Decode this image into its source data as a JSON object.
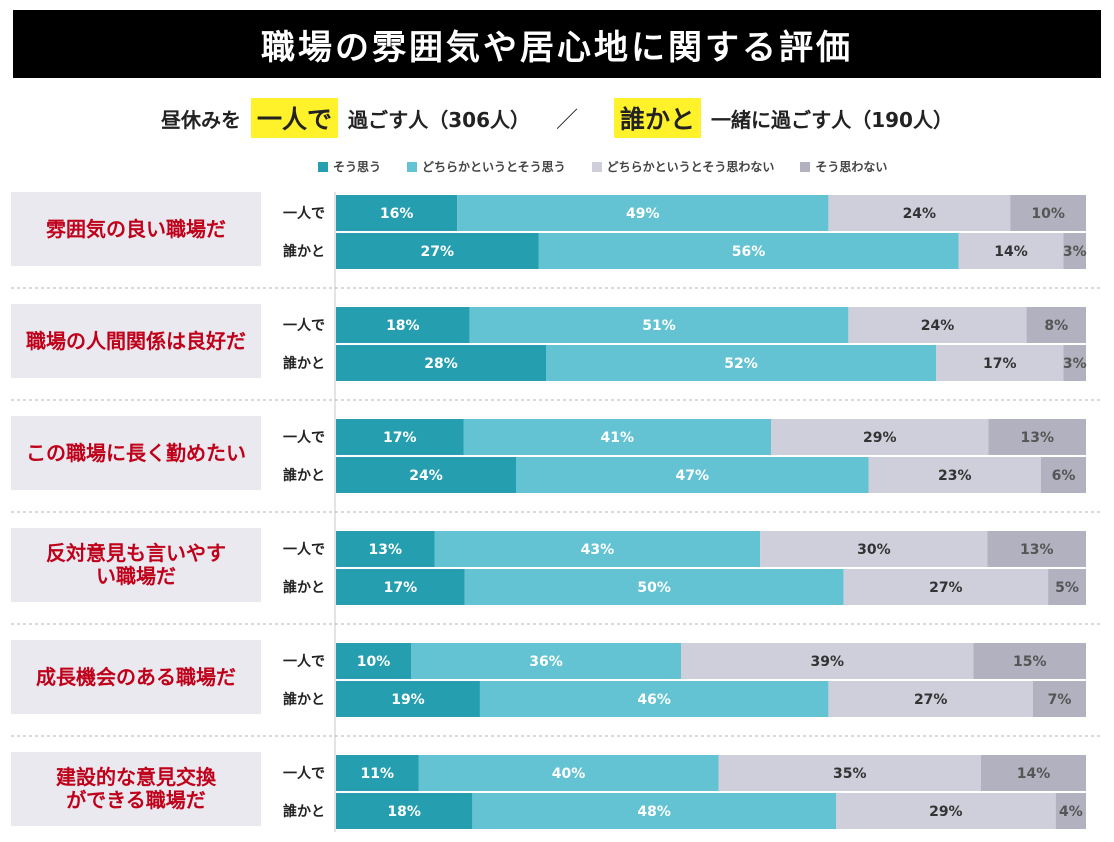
{
  "title": "職場の雰囲気や居心地に関する評価",
  "subtitle": {
    "prefix": "昼休みを",
    "group1": "一人で",
    "group1_suffix": "過ごす人（306人）",
    "separator": "／",
    "group2": "誰かと",
    "group2_suffix": "一緒に過ごす人（190人）"
  },
  "colors": {
    "s1": "#259eaf",
    "s2": "#63c3d2",
    "s3": "#cfcfdc",
    "s4": "#b1b1c0",
    "label_bg": "#e9e9ef",
    "category_text": "#c0001a"
  },
  "chart_data": {
    "type": "bar",
    "orientation": "horizontal",
    "stacked": true,
    "normalized": "percent",
    "legend_position": "top",
    "series_names": [
      "そう思う",
      "どちらかというとそう思う",
      "どちらかというとそう思わない",
      "そう思わない"
    ],
    "row_labels": [
      "一人で",
      "誰かと"
    ],
    "categories": [
      {
        "label": "雰囲気の良い職場だ",
        "rows": [
          [
            16,
            49,
            24,
            10
          ],
          [
            27,
            56,
            14,
            3
          ]
        ]
      },
      {
        "label": "職場の人間関係は良好だ",
        "rows": [
          [
            18,
            51,
            24,
            8
          ],
          [
            28,
            52,
            17,
            3
          ]
        ]
      },
      {
        "label": "この職場に長く勤めたい",
        "rows": [
          [
            17,
            41,
            29,
            13
          ],
          [
            24,
            47,
            23,
            6
          ]
        ]
      },
      {
        "label": "反対意見も言いやすい職場だ",
        "rows": [
          [
            13,
            43,
            30,
            13
          ],
          [
            17,
            50,
            27,
            5
          ]
        ]
      },
      {
        "label": "成長機会のある職場だ",
        "rows": [
          [
            10,
            36,
            39,
            15
          ],
          [
            19,
            46,
            27,
            7
          ]
        ]
      },
      {
        "label": "建設的な意見交換ができる職場だ",
        "rows": [
          [
            11,
            40,
            35,
            14
          ],
          [
            18,
            48,
            29,
            4
          ]
        ]
      }
    ]
  }
}
